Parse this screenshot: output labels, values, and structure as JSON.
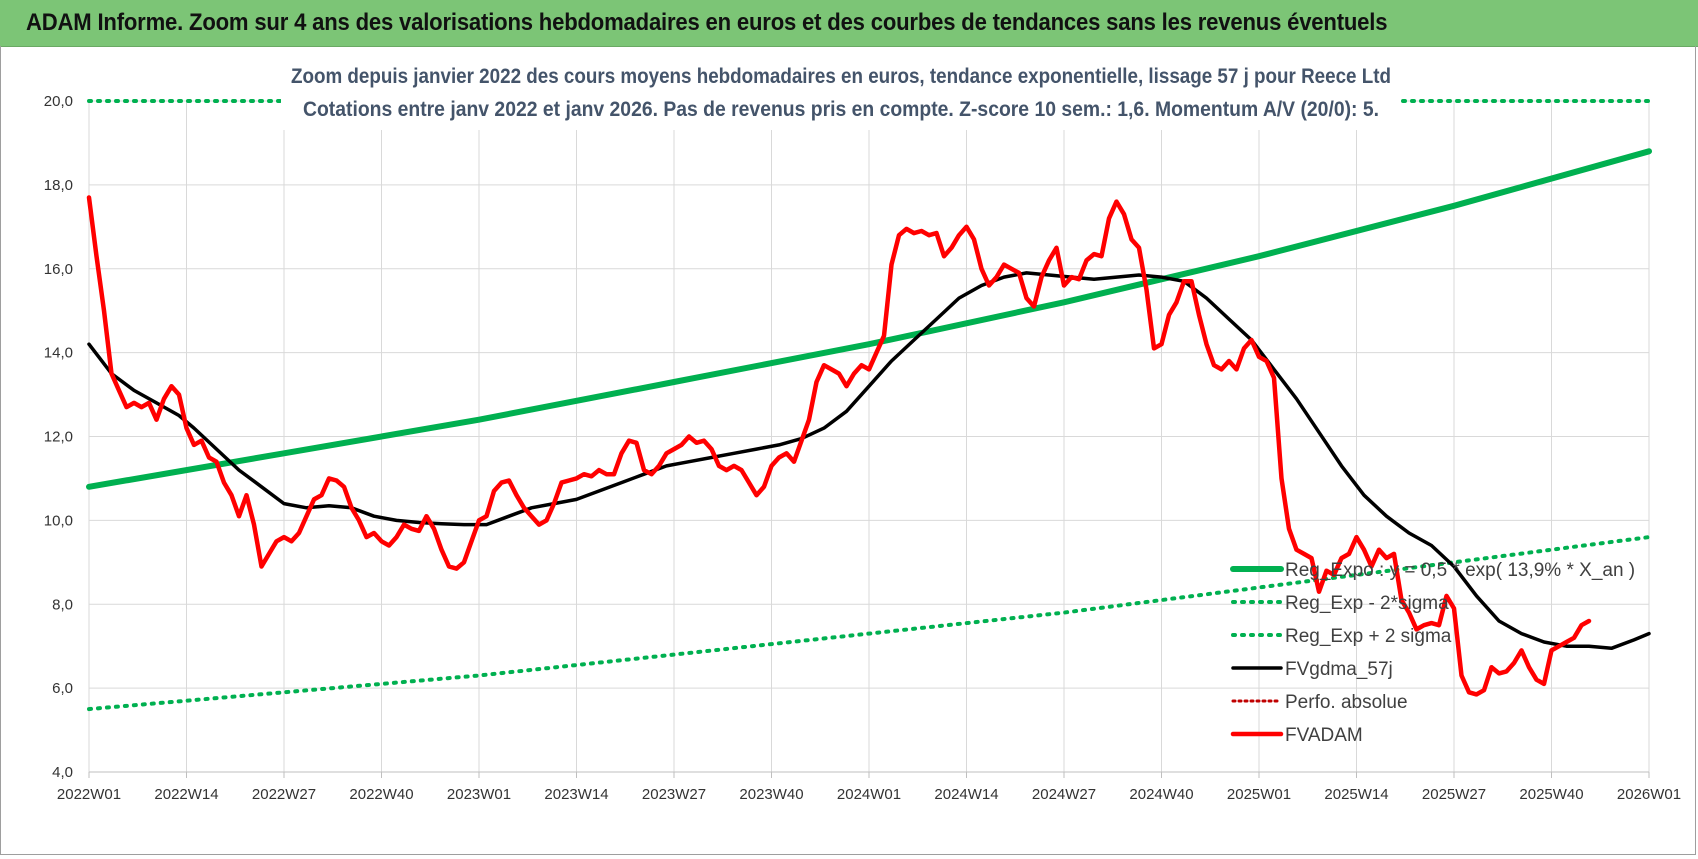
{
  "header": {
    "title": "ADAM Informe. Zoom sur 4 ans des valorisations hebdomadaires en euros et des courbes de tendances sans les revenus éventuels"
  },
  "colors": {
    "banner": "#7cc576",
    "reg_exp": "#00b050",
    "fvgdma": "#000000",
    "fvadam": "#ff0000",
    "perfo": "#c00000"
  },
  "chart_data": {
    "type": "line",
    "title_lines": [
      "Zoom depuis janvier 2022 des cours moyens hebdomadaires en euros, tendance exponentielle, lissage 57 j pour Reece Ltd",
      "Cotations entre janv 2022 et janv 2026. Pas de revenus pris en compte. Z-score 10 sem.: 1,6. Momentum A/V (20/0): 5."
    ],
    "xlabel": "",
    "ylabel": "",
    "ylim": [
      4,
      20
    ],
    "x_range": [
      0,
      208
    ],
    "y_ticks": [
      "4,0",
      "6,0",
      "8,0",
      "10,0",
      "12,0",
      "14,0",
      "16,0",
      "18,0",
      "20,0"
    ],
    "x_ticks": [
      "2022W01",
      "2022W14",
      "2022W27",
      "2022W40",
      "2023W01",
      "2023W14",
      "2023W27",
      "2023W40",
      "2024W01",
      "2024W14",
      "2024W27",
      "2024W40",
      "2025W01",
      "2025W14",
      "2025W27",
      "2025W40",
      "2026W01"
    ],
    "x_tick_weeks": [
      0,
      13,
      26,
      39,
      52,
      65,
      78,
      91,
      104,
      117,
      130,
      143,
      156,
      169,
      182,
      195,
      208
    ],
    "grid": true,
    "legend_position": "bottom-right",
    "legend": [
      {
        "label": "Reg_Expo : y = 0,5 * exp( 13,9% * X_an )",
        "series": "reg_exp",
        "style": "solid-thick"
      },
      {
        "label": "Reg_Exp - 2*sigma",
        "series": "reg_minus",
        "style": "dotted"
      },
      {
        "label": "Reg_Exp + 2 sigma",
        "series": "reg_plus",
        "style": "dotted"
      },
      {
        "label": "FVgdma_57j",
        "series": "fvgdma",
        "style": "solid"
      },
      {
        "label": "Perfo. absolue",
        "series": "perfo",
        "style": "dotted-red"
      },
      {
        "label": "FVADAM",
        "series": "fvadam",
        "style": "solid-thick-red"
      }
    ],
    "series": [
      {
        "name": "Reg_Exp + 2 sigma",
        "key": "reg_plus",
        "points": [
          [
            0,
            20.0
          ],
          [
            208,
            20.0
          ]
        ]
      },
      {
        "name": "Reg_Expo",
        "key": "reg_exp",
        "points": [
          [
            0,
            10.8
          ],
          [
            26,
            11.6
          ],
          [
            52,
            12.4
          ],
          [
            78,
            13.3
          ],
          [
            104,
            14.2
          ],
          [
            130,
            15.2
          ],
          [
            156,
            16.3
          ],
          [
            182,
            17.5
          ],
          [
            208,
            18.8
          ]
        ]
      },
      {
        "name": "Reg_Exp - 2*sigma",
        "key": "reg_minus",
        "points": [
          [
            0,
            5.5
          ],
          [
            26,
            5.9
          ],
          [
            52,
            6.3
          ],
          [
            78,
            6.8
          ],
          [
            104,
            7.3
          ],
          [
            130,
            7.8
          ],
          [
            156,
            8.4
          ],
          [
            182,
            9.0
          ],
          [
            208,
            9.6
          ]
        ]
      },
      {
        "name": "FVgdma_57j",
        "key": "fvgdma",
        "points": [
          [
            0,
            14.2
          ],
          [
            3,
            13.5
          ],
          [
            6,
            13.1
          ],
          [
            9,
            12.8
          ],
          [
            12,
            12.5
          ],
          [
            14,
            12.2
          ],
          [
            17,
            11.7
          ],
          [
            20,
            11.2
          ],
          [
            23,
            10.8
          ],
          [
            26,
            10.4
          ],
          [
            29,
            10.3
          ],
          [
            32,
            10.35
          ],
          [
            35,
            10.3
          ],
          [
            38,
            10.1
          ],
          [
            41,
            10.0
          ],
          [
            44,
            9.95
          ],
          [
            47,
            9.92
          ],
          [
            50,
            9.9
          ],
          [
            53,
            9.9
          ],
          [
            56,
            10.1
          ],
          [
            59,
            10.3
          ],
          [
            62,
            10.4
          ],
          [
            65,
            10.5
          ],
          [
            68,
            10.7
          ],
          [
            71,
            10.9
          ],
          [
            74,
            11.1
          ],
          [
            77,
            11.3
          ],
          [
            80,
            11.4
          ],
          [
            83,
            11.5
          ],
          [
            86,
            11.6
          ],
          [
            89,
            11.7
          ],
          [
            92,
            11.8
          ],
          [
            95,
            11.95
          ],
          [
            98,
            12.2
          ],
          [
            101,
            12.6
          ],
          [
            104,
            13.2
          ],
          [
            107,
            13.8
          ],
          [
            110,
            14.3
          ],
          [
            113,
            14.8
          ],
          [
            116,
            15.3
          ],
          [
            119,
            15.6
          ],
          [
            122,
            15.8
          ],
          [
            125,
            15.9
          ],
          [
            128,
            15.85
          ],
          [
            131,
            15.8
          ],
          [
            134,
            15.75
          ],
          [
            137,
            15.8
          ],
          [
            140,
            15.85
          ],
          [
            143,
            15.8
          ],
          [
            146,
            15.7
          ],
          [
            149,
            15.3
          ],
          [
            152,
            14.8
          ],
          [
            155,
            14.3
          ],
          [
            158,
            13.6
          ],
          [
            161,
            12.9
          ],
          [
            164,
            12.1
          ],
          [
            167,
            11.3
          ],
          [
            170,
            10.6
          ],
          [
            173,
            10.1
          ],
          [
            176,
            9.7
          ],
          [
            179,
            9.4
          ],
          [
            182,
            8.9
          ],
          [
            185,
            8.2
          ],
          [
            188,
            7.6
          ],
          [
            191,
            7.3
          ],
          [
            194,
            7.1
          ],
          [
            197,
            7.0
          ],
          [
            200,
            7.0
          ],
          [
            203,
            6.95
          ],
          [
            206,
            7.15
          ],
          [
            208,
            7.3
          ]
        ]
      },
      {
        "name": "FVADAM",
        "key": "fvadam",
        "points": [
          [
            0,
            17.7
          ],
          [
            1,
            16.3
          ],
          [
            2,
            15.0
          ],
          [
            3,
            13.5
          ],
          [
            4,
            13.1
          ],
          [
            5,
            12.7
          ],
          [
            6,
            12.8
          ],
          [
            7,
            12.7
          ],
          [
            8,
            12.8
          ],
          [
            9,
            12.4
          ],
          [
            10,
            12.9
          ],
          [
            11,
            13.2
          ],
          [
            12,
            13.0
          ],
          [
            13,
            12.2
          ],
          [
            14,
            11.8
          ],
          [
            15,
            11.9
          ],
          [
            16,
            11.5
          ],
          [
            17,
            11.4
          ],
          [
            18,
            10.9
          ],
          [
            19,
            10.6
          ],
          [
            20,
            10.1
          ],
          [
            21,
            10.6
          ],
          [
            22,
            9.9
          ],
          [
            23,
            8.9
          ],
          [
            24,
            9.2
          ],
          [
            25,
            9.5
          ],
          [
            26,
            9.6
          ],
          [
            27,
            9.5
          ],
          [
            28,
            9.7
          ],
          [
            29,
            10.1
          ],
          [
            30,
            10.5
          ],
          [
            31,
            10.6
          ],
          [
            32,
            11.0
          ],
          [
            33,
            10.95
          ],
          [
            34,
            10.8
          ],
          [
            35,
            10.3
          ],
          [
            36,
            10.0
          ],
          [
            37,
            9.6
          ],
          [
            38,
            9.7
          ],
          [
            39,
            9.5
          ],
          [
            40,
            9.4
          ],
          [
            41,
            9.6
          ],
          [
            42,
            9.9
          ],
          [
            43,
            9.8
          ],
          [
            44,
            9.75
          ],
          [
            45,
            10.1
          ],
          [
            46,
            9.8
          ],
          [
            47,
            9.3
          ],
          [
            48,
            8.9
          ],
          [
            49,
            8.85
          ],
          [
            50,
            9.0
          ],
          [
            51,
            9.5
          ],
          [
            52,
            10.0
          ],
          [
            53,
            10.1
          ],
          [
            54,
            10.7
          ],
          [
            55,
            10.9
          ],
          [
            56,
            10.95
          ],
          [
            57,
            10.6
          ],
          [
            58,
            10.3
          ],
          [
            59,
            10.1
          ],
          [
            60,
            9.9
          ],
          [
            61,
            10.0
          ],
          [
            62,
            10.4
          ],
          [
            63,
            10.9
          ],
          [
            64,
            10.95
          ],
          [
            65,
            11.0
          ],
          [
            66,
            11.1
          ],
          [
            67,
            11.05
          ],
          [
            68,
            11.2
          ],
          [
            69,
            11.1
          ],
          [
            70,
            11.1
          ],
          [
            71,
            11.6
          ],
          [
            72,
            11.9
          ],
          [
            73,
            11.85
          ],
          [
            74,
            11.2
          ],
          [
            75,
            11.1
          ],
          [
            76,
            11.3
          ],
          [
            77,
            11.6
          ],
          [
            78,
            11.7
          ],
          [
            79,
            11.8
          ],
          [
            80,
            12.0
          ],
          [
            81,
            11.85
          ],
          [
            82,
            11.9
          ],
          [
            83,
            11.7
          ],
          [
            84,
            11.3
          ],
          [
            85,
            11.2
          ],
          [
            86,
            11.3
          ],
          [
            87,
            11.2
          ],
          [
            88,
            10.9
          ],
          [
            89,
            10.6
          ],
          [
            90,
            10.8
          ],
          [
            91,
            11.3
          ],
          [
            92,
            11.5
          ],
          [
            93,
            11.6
          ],
          [
            94,
            11.4
          ],
          [
            95,
            11.9
          ],
          [
            96,
            12.4
          ],
          [
            97,
            13.3
          ],
          [
            98,
            13.7
          ],
          [
            99,
            13.6
          ],
          [
            100,
            13.5
          ],
          [
            101,
            13.2
          ],
          [
            102,
            13.5
          ],
          [
            103,
            13.7
          ],
          [
            104,
            13.6
          ],
          [
            105,
            14.0
          ],
          [
            106,
            14.4
          ],
          [
            107,
            16.1
          ],
          [
            108,
            16.8
          ],
          [
            109,
            16.95
          ],
          [
            110,
            16.85
          ],
          [
            111,
            16.9
          ],
          [
            112,
            16.8
          ],
          [
            113,
            16.85
          ],
          [
            114,
            16.3
          ],
          [
            115,
            16.5
          ],
          [
            116,
            16.8
          ],
          [
            117,
            17.0
          ],
          [
            118,
            16.7
          ],
          [
            119,
            16.0
          ],
          [
            120,
            15.6
          ],
          [
            121,
            15.8
          ],
          [
            122,
            16.1
          ],
          [
            123,
            16.0
          ],
          [
            124,
            15.9
          ],
          [
            125,
            15.3
          ],
          [
            126,
            15.1
          ],
          [
            127,
            15.8
          ],
          [
            128,
            16.2
          ],
          [
            129,
            16.5
          ],
          [
            130,
            15.6
          ],
          [
            131,
            15.8
          ],
          [
            132,
            15.75
          ],
          [
            133,
            16.2
          ],
          [
            134,
            16.35
          ],
          [
            135,
            16.3
          ],
          [
            136,
            17.2
          ],
          [
            137,
            17.6
          ],
          [
            138,
            17.3
          ],
          [
            139,
            16.7
          ],
          [
            140,
            16.5
          ],
          [
            141,
            15.5
          ],
          [
            142,
            14.1
          ],
          [
            143,
            14.2
          ],
          [
            144,
            14.9
          ],
          [
            145,
            15.2
          ],
          [
            146,
            15.7
          ],
          [
            147,
            15.7
          ],
          [
            148,
            14.9
          ],
          [
            149,
            14.2
          ],
          [
            150,
            13.7
          ],
          [
            151,
            13.6
          ],
          [
            152,
            13.8
          ],
          [
            153,
            13.6
          ],
          [
            154,
            14.1
          ],
          [
            155,
            14.3
          ],
          [
            156,
            13.9
          ],
          [
            157,
            13.8
          ],
          [
            158,
            13.4
          ],
          [
            159,
            11.0
          ],
          [
            160,
            9.8
          ],
          [
            161,
            9.3
          ],
          [
            162,
            9.2
          ],
          [
            163,
            9.1
          ],
          [
            164,
            8.3
          ],
          [
            165,
            8.8
          ],
          [
            166,
            8.7
          ],
          [
            167,
            9.1
          ],
          [
            168,
            9.2
          ],
          [
            169,
            9.6
          ],
          [
            170,
            9.3
          ],
          [
            171,
            8.9
          ],
          [
            172,
            9.3
          ],
          [
            173,
            9.1
          ],
          [
            174,
            9.2
          ],
          [
            175,
            8.1
          ],
          [
            176,
            7.8
          ],
          [
            177,
            7.4
          ],
          [
            178,
            7.5
          ],
          [
            179,
            7.55
          ],
          [
            180,
            7.5
          ],
          [
            181,
            8.2
          ],
          [
            182,
            7.9
          ],
          [
            183,
            6.3
          ],
          [
            184,
            5.9
          ],
          [
            185,
            5.85
          ],
          [
            186,
            5.95
          ],
          [
            187,
            6.5
          ],
          [
            188,
            6.35
          ],
          [
            189,
            6.4
          ],
          [
            190,
            6.6
          ],
          [
            191,
            6.9
          ],
          [
            192,
            6.5
          ],
          [
            193,
            6.2
          ],
          [
            194,
            6.1
          ],
          [
            195,
            6.9
          ],
          [
            196,
            7.0
          ],
          [
            197,
            7.1
          ],
          [
            198,
            7.2
          ],
          [
            199,
            7.5
          ],
          [
            200,
            7.6
          ]
        ]
      }
    ]
  }
}
